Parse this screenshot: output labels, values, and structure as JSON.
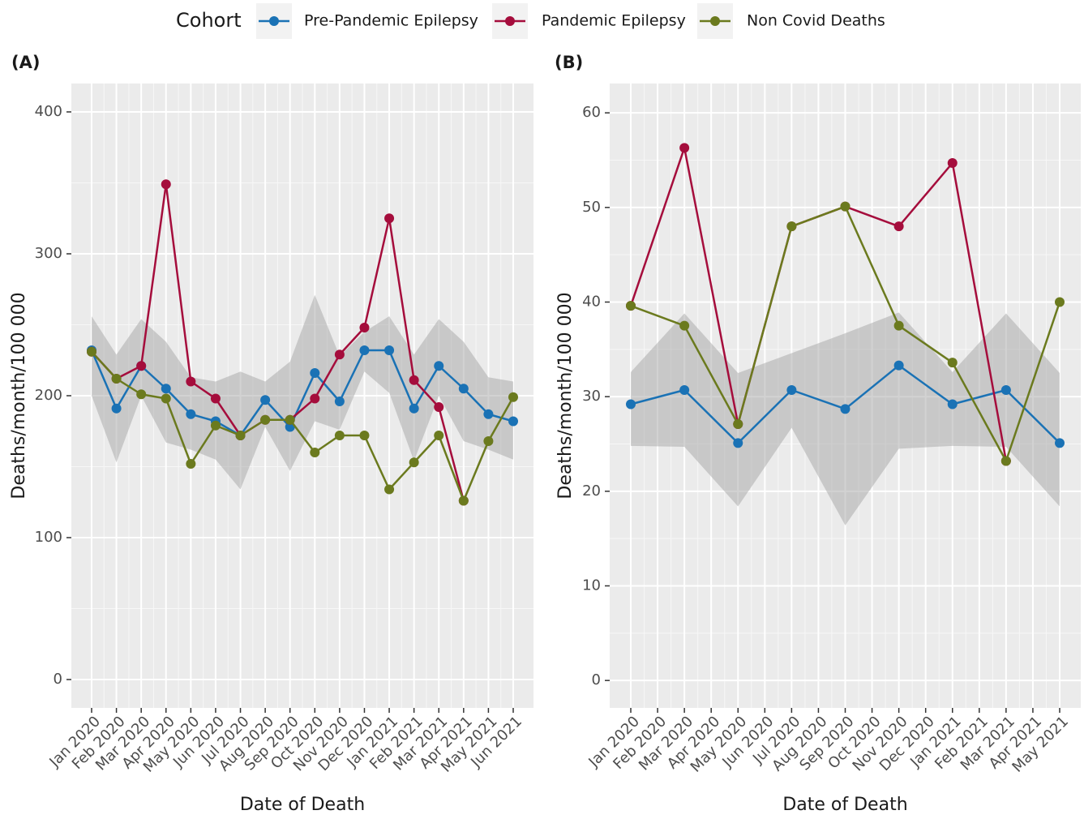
{
  "chart_data": [
    {
      "type": "line",
      "title": "(A)",
      "legend_title": "Cohort",
      "x_label": "Date of Death",
      "y_label": "Deaths/month/100 000",
      "categories": [
        "Jan 2020",
        "Feb 2020",
        "Mar 2020",
        "Apr 2020",
        "May 2020",
        "Jun 2020",
        "Jul 2020",
        "Aug 2020",
        "Sep 2020",
        "Oct 2020",
        "Nov 2020",
        "Dec 2020",
        "Jan 2021",
        "Feb 2021",
        "Mar 2021",
        "Apr 2021",
        "May 2021",
        "Jun 2021"
      ],
      "ylim": [
        -20,
        420
      ],
      "yticks": [
        0,
        100,
        200,
        300,
        400
      ],
      "grid": true,
      "band": {
        "color": "#a6a6a6",
        "upper": [
          256,
          229,
          254,
          238,
          213,
          210,
          217,
          210,
          224,
          271,
          228,
          245,
          256,
          229,
          254,
          238,
          213,
          210
        ],
        "lower": [
          200,
          153,
          200,
          167,
          162,
          155,
          134,
          178,
          147,
          182,
          176,
          217,
          202,
          154,
          200,
          168,
          162,
          155
        ]
      },
      "series": [
        {
          "name": "Pre-Pandemic Epilepsy",
          "color": "#1a72b5",
          "values": [
            232,
            191,
            221,
            205,
            187,
            182,
            172,
            197,
            178,
            216,
            196,
            232,
            232,
            191,
            221,
            205,
            187,
            182
          ]
        },
        {
          "name": "Pandemic Epilepsy",
          "color": "#a50d3c",
          "values": [
            231,
            212,
            221,
            349,
            210,
            198,
            172,
            183,
            183,
            198,
            229,
            248,
            325,
            211,
            192,
            126,
            null,
            null
          ]
        },
        {
          "name": "Non Covid Deaths",
          "color": "#6b7a1e",
          "values": [
            231,
            212,
            201,
            198,
            152,
            179,
            172,
            183,
            183,
            160,
            172,
            172,
            134,
            153,
            172,
            126,
            168,
            199
          ]
        }
      ]
    },
    {
      "type": "line",
      "title": "(B)",
      "x_label": "Date of Death",
      "y_label": "Deaths/month/100 000",
      "categories": [
        "Jan 2020",
        "Feb 2020",
        "Mar 2020",
        "Apr 2020",
        "May 2020",
        "Jun 2020",
        "Jul 2020",
        "Aug 2020",
        "Sep 2020",
        "Oct 2020",
        "Nov 2020",
        "Dec 2020",
        "Jan 2021",
        "Feb 2021",
        "Mar 2021",
        "Apr 2021",
        "May 2021"
      ],
      "ylim": [
        -2.9,
        63.1
      ],
      "yticks": [
        0,
        10,
        20,
        30,
        40,
        50,
        60
      ],
      "grid": true,
      "band": {
        "color": "#a6a6a6",
        "upper": [
          32.6,
          null,
          38.8,
          null,
          32.5,
          null,
          34.6,
          null,
          36.7,
          null,
          38.9,
          null,
          32.6,
          null,
          38.8,
          null,
          32.5
        ],
        "lower": [
          24.8,
          null,
          24.7,
          null,
          18.4,
          null,
          26.7,
          null,
          16.4,
          null,
          24.5,
          null,
          24.8,
          null,
          24.7,
          null,
          18.4
        ]
      },
      "series": [
        {
          "color": "#1a72b5",
          "values": [
            29.2,
            null,
            30.7,
            null,
            25.1,
            null,
            30.7,
            null,
            28.7,
            null,
            33.3,
            null,
            29.2,
            null,
            30.7,
            null,
            25.1
          ]
        },
        {
          "color": "#a50d3c",
          "values": [
            39.6,
            null,
            56.3,
            null,
            27.1,
            null,
            48,
            null,
            50.1,
            null,
            48,
            null,
            54.7,
            null,
            23.2,
            null,
            null
          ]
        },
        {
          "color": "#6b7a1e",
          "values": [
            39.6,
            null,
            37.5,
            null,
            27.1,
            null,
            48,
            null,
            50.1,
            null,
            37.5,
            null,
            33.6,
            null,
            23.2,
            null,
            40
          ]
        }
      ]
    }
  ]
}
